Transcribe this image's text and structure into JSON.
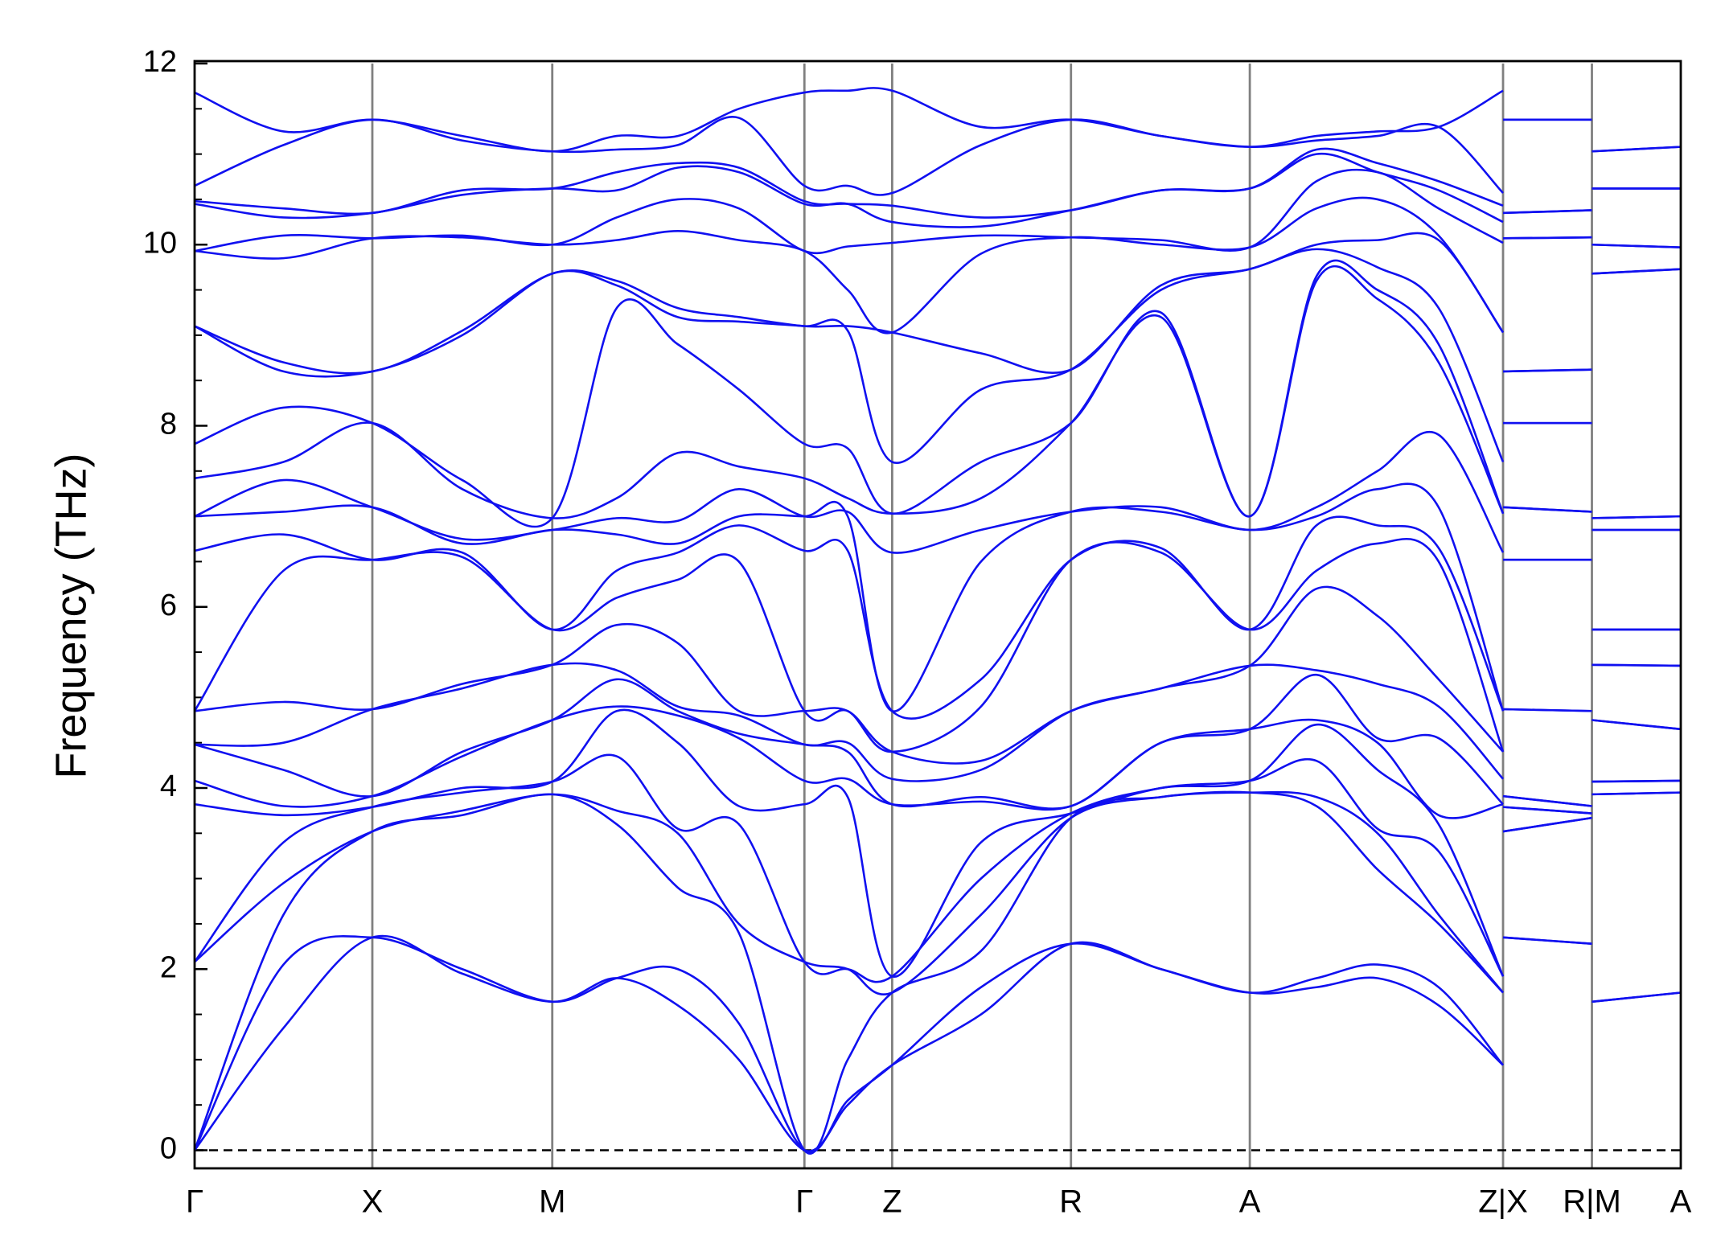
{
  "chart_data": {
    "type": "band_structure",
    "y_label": "Frequency (THz)",
    "color": "#1010f0",
    "xlim": [
      0,
      13.38
    ],
    "ylim": [
      -0.2,
      12
    ],
    "xticks": [
      {
        "value": 0,
        "label": "Γ"
      },
      {
        "value": 1.6,
        "label": "X"
      },
      {
        "value": 3.22,
        "label": "M"
      },
      {
        "value": 5.49,
        "label": "Γ"
      },
      {
        "value": 6.28,
        "label": "Z"
      },
      {
        "value": 7.89,
        "label": "R"
      },
      {
        "value": 9.5,
        "label": "A"
      },
      {
        "value": 11.78,
        "label": "Z|X"
      },
      {
        "value": 12.58,
        "label": "R|M"
      },
      {
        "value": 13.38,
        "label": "A"
      }
    ],
    "yticks": [
      0,
      2,
      4,
      6,
      8,
      10,
      12
    ],
    "y_minor_ticks": [
      0.5,
      1,
      1.5,
      2.5,
      3,
      3.5,
      4.5,
      5,
      5.5,
      6.5,
      7,
      7.5,
      8.5,
      9,
      9.5,
      10.5,
      11,
      11.5
    ],
    "zero_line": true,
    "x": [
      0,
      0.8,
      1.6,
      2.41,
      3.22,
      3.8,
      4.35,
      4.9,
      5.49,
      5.88,
      6.28,
      7.08,
      7.89,
      8.7,
      9.5,
      10.1,
      10.65,
      11.2,
      11.78,
      11.78,
      11.78,
      12.58,
      12.58,
      12.58,
      13.38
    ],
    "series": [
      {
        "values": [
          0,
          1.35,
          2.35,
          1.95,
          1.64,
          1.9,
          1.6,
          1.0,
          0,
          0.5,
          0.94,
          1.5,
          2.28,
          2.0,
          1.74,
          1.8,
          1.9,
          1.6,
          0.94,
          null,
          2.35,
          2.28,
          null,
          1.64,
          1.74
        ]
      },
      {
        "values": [
          0,
          2.05,
          2.35,
          2.0,
          1.64,
          1.9,
          2.0,
          1.4,
          0,
          0.55,
          0.94,
          1.8,
          2.28,
          2.0,
          1.74,
          1.9,
          2.05,
          1.8,
          0.94,
          null,
          2.35,
          2.28,
          null,
          1.64,
          1.74
        ]
      },
      {
        "values": [
          0,
          2.6,
          3.52,
          3.7,
          3.93,
          3.6,
          2.9,
          2.4,
          0,
          1.0,
          1.74,
          2.2,
          3.67,
          3.9,
          3.95,
          3.8,
          3.1,
          2.5,
          1.74,
          null,
          3.52,
          3.67,
          null,
          3.93,
          3.95
        ]
      },
      {
        "values": [
          2.08,
          2.95,
          3.52,
          3.75,
          3.93,
          3.75,
          3.5,
          2.5,
          2.08,
          2.0,
          1.74,
          2.6,
          3.67,
          3.9,
          3.95,
          3.9,
          3.5,
          2.6,
          1.74,
          null,
          3.52,
          3.67,
          null,
          3.93,
          3.95
        ]
      },
      {
        "values": [
          2.08,
          3.4,
          3.79,
          3.95,
          4.07,
          4.35,
          3.55,
          3.6,
          2.08,
          2.0,
          1.92,
          3.0,
          3.72,
          4.0,
          4.08,
          4.3,
          3.55,
          3.3,
          1.92,
          null,
          3.79,
          3.72,
          null,
          4.07,
          4.08
        ]
      },
      {
        "values": [
          3.82,
          3.7,
          3.79,
          4.0,
          4.07,
          4.85,
          4.5,
          3.8,
          3.82,
          3.9,
          1.92,
          3.4,
          3.72,
          4.0,
          4.08,
          4.7,
          4.2,
          3.6,
          1.92,
          null,
          3.79,
          3.72,
          null,
          4.07,
          4.08
        ]
      },
      {
        "values": [
          4.08,
          3.8,
          3.91,
          4.35,
          4.75,
          4.9,
          4.8,
          4.55,
          4.08,
          4.1,
          3.82,
          3.85,
          3.8,
          4.5,
          4.65,
          4.75,
          4.5,
          3.7,
          3.82,
          null,
          3.91,
          3.8,
          null,
          4.75,
          4.65
        ]
      },
      {
        "values": [
          4.48,
          4.2,
          3.91,
          4.4,
          4.75,
          5.2,
          4.85,
          4.6,
          4.48,
          4.4,
          3.82,
          3.9,
          3.8,
          4.5,
          4.65,
          5.25,
          4.55,
          4.55,
          3.82,
          null,
          3.91,
          3.8,
          null,
          4.75,
          4.65
        ]
      },
      {
        "values": [
          4.48,
          4.5,
          4.87,
          5.1,
          5.36,
          5.3,
          4.9,
          4.8,
          4.48,
          4.5,
          4.1,
          4.2,
          4.85,
          5.1,
          5.35,
          5.3,
          5.15,
          4.9,
          4.1,
          null,
          4.87,
          4.85,
          null,
          5.36,
          5.35
        ]
      },
      {
        "values": [
          4.85,
          4.95,
          4.87,
          5.15,
          5.36,
          5.8,
          5.6,
          4.85,
          4.85,
          4.85,
          4.4,
          4.3,
          4.85,
          5.1,
          5.35,
          6.2,
          5.9,
          5.2,
          4.4,
          null,
          4.87,
          4.85,
          null,
          5.36,
          5.35
        ]
      },
      {
        "values": [
          4.85,
          6.4,
          6.52,
          6.55,
          5.75,
          6.1,
          6.3,
          6.5,
          4.85,
          4.85,
          4.4,
          4.9,
          6.52,
          6.6,
          5.75,
          6.4,
          6.7,
          6.5,
          4.4,
          null,
          6.52,
          6.52,
          null,
          5.75,
          5.75
        ]
      },
      {
        "values": [
          6.62,
          6.8,
          6.52,
          6.6,
          5.75,
          6.4,
          6.6,
          6.9,
          6.62,
          6.62,
          4.85,
          5.2,
          6.52,
          6.65,
          5.75,
          6.9,
          6.9,
          6.65,
          4.85,
          null,
          6.52,
          6.52,
          null,
          5.75,
          5.75
        ]
      },
      {
        "values": [
          7.0,
          7.05,
          7.1,
          6.7,
          6.85,
          6.8,
          6.7,
          7.0,
          7.0,
          7.0,
          4.85,
          6.5,
          7.05,
          7.05,
          6.85,
          7.0,
          7.3,
          7.1,
          4.85,
          null,
          7.1,
          7.05,
          null,
          6.85,
          6.85
        ]
      },
      {
        "values": [
          7.0,
          7.4,
          7.1,
          6.75,
          6.85,
          6.98,
          6.95,
          7.3,
          7.0,
          7.05,
          6.6,
          6.85,
          7.05,
          7.1,
          6.85,
          7.1,
          7.5,
          7.9,
          6.6,
          null,
          7.1,
          7.05,
          null,
          6.85,
          6.85
        ]
      },
      {
        "values": [
          7.42,
          7.6,
          8.03,
          7.3,
          6.98,
          7.2,
          7.7,
          7.55,
          7.42,
          7.2,
          7.03,
          7.2,
          8.03,
          9.2,
          7.0,
          9.6,
          9.4,
          8.7,
          7.03,
          null,
          8.03,
          8.03,
          null,
          6.98,
          7.0
        ]
      },
      {
        "values": [
          7.8,
          8.2,
          8.03,
          7.4,
          6.98,
          9.3,
          8.9,
          8.4,
          7.8,
          7.75,
          7.03,
          7.6,
          8.03,
          9.25,
          7.0,
          9.65,
          9.5,
          8.9,
          7.03,
          null,
          8.03,
          8.03,
          null,
          6.98,
          7.0
        ]
      },
      {
        "values": [
          9.1,
          8.6,
          8.6,
          9.0,
          9.68,
          9.55,
          9.2,
          9.15,
          9.1,
          9.05,
          7.6,
          8.4,
          8.62,
          9.5,
          9.73,
          9.95,
          9.75,
          9.3,
          7.6,
          null,
          8.6,
          8.62,
          null,
          9.68,
          9.73
        ]
      },
      {
        "values": [
          9.1,
          8.7,
          8.6,
          9.05,
          9.68,
          9.6,
          9.3,
          9.2,
          9.1,
          9.1,
          9.03,
          8.8,
          8.62,
          9.55,
          9.73,
          10.0,
          10.05,
          10.05,
          9.03,
          null,
          8.6,
          8.62,
          null,
          9.68,
          9.73
        ]
      },
      {
        "values": [
          9.93,
          9.85,
          10.07,
          10.08,
          10.0,
          10.05,
          10.15,
          10.05,
          9.93,
          9.5,
          9.03,
          9.9,
          10.08,
          10.0,
          9.97,
          10.4,
          10.5,
          10.1,
          9.03,
          null,
          10.07,
          10.08,
          null,
          10.0,
          9.97
        ]
      },
      {
        "values": [
          9.93,
          10.1,
          10.07,
          10.1,
          10.0,
          10.3,
          10.5,
          10.4,
          9.93,
          9.98,
          10.02,
          10.1,
          10.08,
          10.05,
          9.97,
          10.7,
          10.8,
          10.4,
          10.02,
          null,
          10.07,
          10.08,
          null,
          10.0,
          9.97
        ]
      },
      {
        "values": [
          10.45,
          10.3,
          10.35,
          10.55,
          10.62,
          10.6,
          10.85,
          10.8,
          10.45,
          10.45,
          10.25,
          10.2,
          10.38,
          10.6,
          10.62,
          11.0,
          10.8,
          10.6,
          10.25,
          null,
          10.35,
          10.38,
          null,
          10.62,
          10.62
        ]
      },
      {
        "values": [
          10.48,
          10.4,
          10.35,
          10.6,
          10.62,
          10.8,
          10.9,
          10.85,
          10.48,
          10.45,
          10.43,
          10.3,
          10.38,
          10.6,
          10.62,
          11.05,
          10.9,
          10.7,
          10.43,
          null,
          10.35,
          10.38,
          null,
          10.62,
          10.62
        ]
      },
      {
        "values": [
          10.65,
          11.1,
          11.38,
          11.15,
          11.03,
          11.05,
          11.1,
          11.4,
          10.65,
          10.65,
          10.57,
          11.1,
          11.38,
          11.2,
          11.08,
          11.15,
          11.2,
          11.3,
          10.57,
          null,
          11.38,
          11.38,
          null,
          11.03,
          11.08
        ]
      },
      {
        "values": [
          11.68,
          11.25,
          11.38,
          11.2,
          11.03,
          11.2,
          11.2,
          11.5,
          11.68,
          11.7,
          11.7,
          11.3,
          11.38,
          11.2,
          11.08,
          11.2,
          11.25,
          11.3,
          11.7,
          null,
          11.38,
          11.38,
          null,
          11.03,
          11.08
        ]
      }
    ]
  }
}
